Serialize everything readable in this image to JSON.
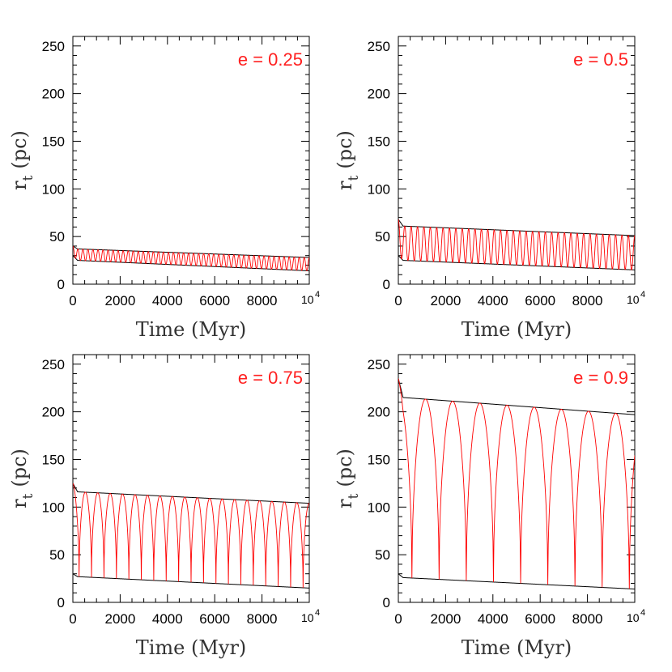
{
  "chart_data": [
    {
      "type": "line",
      "annotation": "e = 0.25",
      "xlabel": "Time (Myr)",
      "ylabel_main": "r",
      "ylabel_sub": "t",
      "ylabel_unit": "(pc)",
      "xlim": [
        0,
        10000
      ],
      "ylim": [
        0,
        260
      ],
      "x_ticks": [
        0,
        2000,
        4000,
        6000,
        8000
      ],
      "x_tick_labels": [
        "0",
        "2000",
        "4000",
        "6000",
        "8000"
      ],
      "x_end_label": {
        "base": "10",
        "exp": "4"
      },
      "y_ticks": [
        0,
        50,
        100,
        150,
        200,
        250
      ],
      "y_tick_labels": [
        "0",
        "50",
        "100",
        "150",
        "200",
        "250"
      ],
      "series": [
        {
          "role": "upper-envelope",
          "color": "#000000",
          "start": 40,
          "x": [
            0,
            200,
            10000
          ],
          "y": [
            40,
            37,
            28
          ]
        },
        {
          "role": "lower-envelope",
          "color": "#000000",
          "start": 30,
          "x": [
            0,
            200,
            10000
          ],
          "y": [
            30,
            25,
            14
          ]
        },
        {
          "role": "oscillation",
          "color": "#ff0000",
          "cycles": 47
        }
      ]
    },
    {
      "type": "line",
      "annotation": "e = 0.5",
      "xlabel": "Time (Myr)",
      "ylabel_main": "r",
      "ylabel_sub": "t",
      "ylabel_unit": "(pc)",
      "xlim": [
        0,
        10000
      ],
      "ylim": [
        0,
        260
      ],
      "x_ticks": [
        0,
        2000,
        4000,
        6000,
        8000
      ],
      "x_tick_labels": [
        "0",
        "2000",
        "4000",
        "6000",
        "8000"
      ],
      "x_end_label": {
        "base": "10",
        "exp": "4"
      },
      "y_ticks": [
        0,
        50,
        100,
        150,
        200,
        250
      ],
      "y_tick_labels": [
        "0",
        "50",
        "100",
        "150",
        "200",
        "250"
      ],
      "series": [
        {
          "role": "upper-envelope",
          "color": "#000000",
          "start": 68,
          "x": [
            0,
            200,
            10000
          ],
          "y": [
            68,
            61,
            51
          ]
        },
        {
          "role": "lower-envelope",
          "color": "#000000",
          "start": 30,
          "x": [
            0,
            200,
            10000
          ],
          "y": [
            30,
            25,
            15
          ]
        },
        {
          "role": "oscillation",
          "color": "#ff0000",
          "cycles": 37
        }
      ]
    },
    {
      "type": "line",
      "annotation": "e = 0.75",
      "xlabel": "Time (Myr)",
      "ylabel_main": "r",
      "ylabel_sub": "t",
      "ylabel_unit": "(pc)",
      "xlim": [
        0,
        10000
      ],
      "ylim": [
        0,
        260
      ],
      "x_ticks": [
        0,
        2000,
        4000,
        6000,
        8000
      ],
      "x_tick_labels": [
        "0",
        "2000",
        "4000",
        "6000",
        "8000"
      ],
      "x_end_label": {
        "base": "10",
        "exp": "4"
      },
      "y_ticks": [
        0,
        50,
        100,
        150,
        200,
        250
      ],
      "y_tick_labels": [
        "0",
        "50",
        "100",
        "150",
        "200",
        "250"
      ],
      "series": [
        {
          "role": "upper-envelope",
          "color": "#000000",
          "start": 125,
          "x": [
            0,
            200,
            10000
          ],
          "y": [
            125,
            116,
            104
          ]
        },
        {
          "role": "lower-envelope",
          "color": "#000000",
          "start": 30,
          "x": [
            0,
            200,
            10000
          ],
          "y": [
            30,
            27,
            15
          ]
        },
        {
          "role": "oscillation",
          "color": "#ff0000",
          "cycles": 19
        }
      ]
    },
    {
      "type": "line",
      "annotation": "e = 0.9",
      "xlabel": "Time (Myr)",
      "ylabel_main": "r",
      "ylabel_sub": "t",
      "ylabel_unit": "(pc)",
      "xlim": [
        0,
        10000
      ],
      "ylim": [
        0,
        260
      ],
      "x_ticks": [
        0,
        2000,
        4000,
        6000,
        8000
      ],
      "x_tick_labels": [
        "0",
        "2000",
        "4000",
        "6000",
        "8000"
      ],
      "x_end_label": {
        "base": "10",
        "exp": "4"
      },
      "y_ticks": [
        0,
        50,
        100,
        150,
        200,
        250
      ],
      "y_tick_labels": [
        "0",
        "50",
        "100",
        "150",
        "200",
        "250"
      ],
      "series": [
        {
          "role": "upper-envelope",
          "color": "#000000",
          "start": 235,
          "x": [
            0,
            200,
            10000
          ],
          "y": [
            235,
            215,
            197
          ]
        },
        {
          "role": "lower-envelope",
          "color": "#000000",
          "start": 30,
          "x": [
            0,
            200,
            10000
          ],
          "y": [
            30,
            26,
            14
          ]
        },
        {
          "role": "oscillation",
          "color": "#ff0000",
          "cycles": 8.7
        }
      ]
    }
  ]
}
